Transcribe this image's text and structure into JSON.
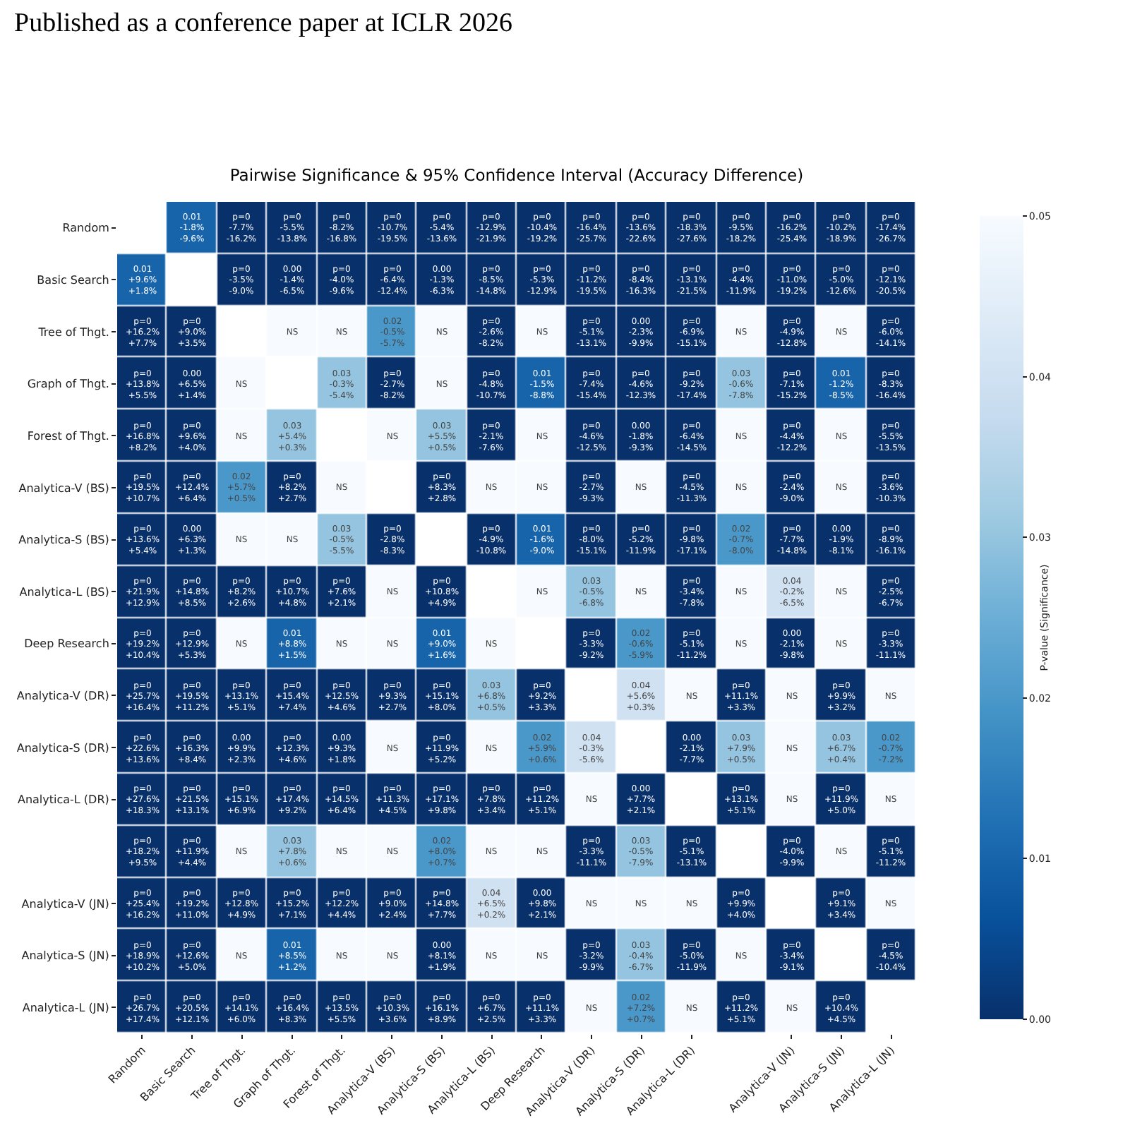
{
  "chart_data": {
    "type": "heatmap",
    "title": "Pairwise Significance & 95% Confidence Interval (Accuracy Difference)",
    "clabel": "P-value (Significance)",
    "annotations": [
      "Published as a conference paper at ICLR 2026"
    ],
    "categories": [
      "Random",
      "Basic Search",
      "Tree of Thgt.",
      "Graph of Thgt.",
      "Forest of Thgt.",
      "Analytica-V (BS)",
      "Analytica-S (BS)",
      "Analytica-L (BS)",
      "Deep Research",
      "Analytica-V (DR)",
      "Analytica-S (DR)",
      "Analytica-L (DR)",
      null,
      "Analytica-V (JN)",
      "Analytica-S (JN)",
      "Analytica-L (JN)"
    ],
    "y_categories": [
      "Random",
      "Basic Search",
      "Tree of Thgt.",
      "Graph of Thgt.",
      "Forest of Thgt.",
      "Analytica-V (BS)",
      "Analytica-S (BS)",
      "Analytica-L (BS)",
      "Deep Research",
      "Analytica-V (DR)",
      "Analytica-S (DR)",
      "Analytica-L (DR)",
      null,
      "Analytica-V (JN)",
      "Analytica-S (JN)",
      "Analytica-L (JN)"
    ],
    "clim": [
      0,
      0.05
    ],
    "cticks": [
      {
        "value": 0,
        "label": "0.00"
      },
      0.01,
      0.02,
      0.03,
      0.04,
      0.05
    ],
    "cells": [
      [
        null,
        0.01,
        0,
        0,
        0,
        0,
        0,
        0,
        0,
        0,
        0,
        0,
        0,
        0,
        0,
        0
      ],
      [
        0.01,
        null,
        0,
        0,
        0,
        0,
        0,
        0,
        0,
        0,
        0,
        0,
        0,
        0,
        0,
        0
      ],
      [
        0,
        0,
        null,
        0.05,
        0.05,
        0.02,
        0.05,
        0,
        0.05,
        0,
        0,
        0,
        0.05,
        0,
        0.05,
        0
      ],
      [
        0,
        0,
        0.05,
        null,
        0.03,
        0,
        0.05,
        0,
        0.01,
        0,
        0,
        0,
        0.03,
        0,
        0.01,
        0
      ],
      [
        0,
        0,
        0.05,
        0.03,
        null,
        0.05,
        0.03,
        0,
        0.05,
        0,
        0,
        0,
        0.05,
        0,
        0.05,
        0
      ],
      [
        0,
        0,
        0.02,
        0,
        0.05,
        null,
        0,
        0.05,
        0.05,
        0,
        0.05,
        0,
        0.05,
        0,
        0.05,
        0
      ],
      [
        0,
        0,
        0.05,
        0.05,
        0.03,
        0,
        null,
        0,
        0.01,
        0,
        0,
        0,
        0.02,
        0,
        0,
        0
      ],
      [
        0,
        0,
        0,
        0,
        0,
        0.05,
        0,
        null,
        0.05,
        0.03,
        0.05,
        0,
        0.05,
        0.04,
        0.05,
        0
      ],
      [
        0,
        0,
        0.05,
        0.01,
        0.05,
        0.05,
        0.01,
        0.05,
        null,
        0,
        0.02,
        0,
        0.05,
        0,
        0.05,
        0
      ],
      [
        0,
        0,
        0,
        0,
        0,
        0,
        0,
        0.03,
        0,
        null,
        0.04,
        0.05,
        0,
        0.05,
        0,
        0.05
      ],
      [
        0,
        0,
        0,
        0,
        0,
        0.05,
        0,
        0.05,
        0.02,
        0.04,
        null,
        0,
        0.03,
        0.05,
        0.03,
        0.02
      ],
      [
        0,
        0,
        0,
        0,
        0,
        0,
        0,
        0,
        0,
        0.05,
        0,
        null,
        0,
        0.05,
        0,
        0.05
      ],
      [
        0,
        0,
        0.05,
        0.03,
        0.05,
        0.05,
        0.02,
        0.05,
        0.05,
        0,
        0.03,
        0,
        null,
        0,
        0.05,
        0
      ],
      [
        0,
        0,
        0,
        0,
        0,
        0,
        0,
        0.04,
        0,
        0.05,
        0.05,
        0.05,
        0,
        null,
        0,
        0.05
      ],
      [
        0,
        0,
        0.05,
        0.01,
        0.05,
        0.05,
        0,
        0.05,
        0.05,
        0,
        0.03,
        0,
        0.05,
        0,
        null,
        0
      ],
      [
        0,
        0,
        0,
        0,
        0,
        0,
        0,
        0,
        0,
        0.05,
        0.02,
        0.05,
        0,
        0.05,
        0,
        null
      ]
    ],
    "cell_labels": [
      [
        null,
        "0.01\n-1.8%\n-9.6%",
        "p=0\n-7.7%\n-16.2%",
        "p=0\n-5.5%\n-13.8%",
        "p=0\n-8.2%\n-16.8%",
        "p=0\n-10.7%\n-19.5%",
        "p=0\n-5.4%\n-13.6%",
        "p=0\n-12.9%\n-21.9%",
        "p=0\n-10.4%\n-19.2%",
        "p=0\n-16.4%\n-25.7%",
        "p=0\n-13.6%\n-22.6%",
        "p=0\n-18.3%\n-27.6%",
        "p=0\n-9.5%\n-18.2%",
        "p=0\n-16.2%\n-25.4%",
        "p=0\n-10.2%\n-18.9%",
        "p=0\n-17.4%\n-26.7%"
      ],
      [
        "0.01\n+9.6%\n+1.8%",
        null,
        "p=0\n-3.5%\n-9.0%",
        "0.00\n-1.4%\n-6.5%",
        "p=0\n-4.0%\n-9.6%",
        "p=0\n-6.4%\n-12.4%",
        "0.00\n-1.3%\n-6.3%",
        "p=0\n-8.5%\n-14.8%",
        "p=0\n-5.3%\n-12.9%",
        "p=0\n-11.2%\n-19.5%",
        "p=0\n-8.4%\n-16.3%",
        "p=0\n-13.1%\n-21.5%",
        "p=0\n-4.4%\n-11.9%",
        "p=0\n-11.0%\n-19.2%",
        "p=0\n-5.0%\n-12.6%",
        "p=0\n-12.1%\n-20.5%"
      ],
      [
        "p=0\n+16.2%\n+7.7%",
        "p=0\n+9.0%\n+3.5%",
        null,
        "NS",
        "NS",
        "0.02\n-0.5%\n-5.7%",
        "NS",
        "p=0\n-2.6%\n-8.2%",
        "NS",
        "p=0\n-5.1%\n-13.1%",
        "0.00\n-2.3%\n-9.9%",
        "p=0\n-6.9%\n-15.1%",
        "NS",
        "p=0\n-4.9%\n-12.8%",
        "NS",
        "p=0\n-6.0%\n-14.1%"
      ],
      [
        "p=0\n+13.8%\n+5.5%",
        "0.00\n+6.5%\n+1.4%",
        "NS",
        null,
        "0.03\n-0.3%\n-5.4%",
        "p=0\n-2.7%\n-8.2%",
        "NS",
        "p=0\n-4.8%\n-10.7%",
        "0.01\n-1.5%\n-8.8%",
        "p=0\n-7.4%\n-15.4%",
        "p=0\n-4.6%\n-12.3%",
        "p=0\n-9.2%\n-17.4%",
        "0.03\n-0.6%\n-7.8%",
        "p=0\n-7.1%\n-15.2%",
        "0.01\n-1.2%\n-8.5%",
        "p=0\n-8.3%\n-16.4%"
      ],
      [
        "p=0\n+16.8%\n+8.2%",
        "p=0\n+9.6%\n+4.0%",
        "NS",
        "0.03\n+5.4%\n+0.3%",
        null,
        "NS",
        "0.03\n+5.5%\n+0.5%",
        "p=0\n-2.1%\n-7.6%",
        "NS",
        "p=0\n-4.6%\n-12.5%",
        "0.00\n-1.8%\n-9.3%",
        "p=0\n-6.4%\n-14.5%",
        "NS",
        "p=0\n-4.4%\n-12.2%",
        "NS",
        "p=0\n-5.5%\n-13.5%"
      ],
      [
        "p=0\n+19.5%\n+10.7%",
        "p=0\n+12.4%\n+6.4%",
        "0.02\n+5.7%\n+0.5%",
        "p=0\n+8.2%\n+2.7%",
        "NS",
        null,
        "p=0\n+8.3%\n+2.8%",
        "NS",
        "NS",
        "p=0\n-2.7%\n-9.3%",
        "NS",
        "p=0\n-4.5%\n-11.3%",
        "NS",
        "p=0\n-2.4%\n-9.0%",
        "NS",
        "p=0\n-3.6%\n-10.3%"
      ],
      [
        "p=0\n+13.6%\n+5.4%",
        "0.00\n+6.3%\n+1.3%",
        "NS",
        "NS",
        "0.03\n-0.5%\n-5.5%",
        "p=0\n-2.8%\n-8.3%",
        null,
        "p=0\n-4.9%\n-10.8%",
        "0.01\n-1.6%\n-9.0%",
        "p=0\n-8.0%\n-15.1%",
        "p=0\n-5.2%\n-11.9%",
        "p=0\n-9.8%\n-17.1%",
        "0.02\n-0.7%\n-8.0%",
        "p=0\n-7.7%\n-14.8%",
        "0.00\n-1.9%\n-8.1%",
        "p=0\n-8.9%\n-16.1%"
      ],
      [
        "p=0\n+21.9%\n+12.9%",
        "p=0\n+14.8%\n+8.5%",
        "p=0\n+8.2%\n+2.6%",
        "p=0\n+10.7%\n+4.8%",
        "p=0\n+7.6%\n+2.1%",
        "NS",
        "p=0\n+10.8%\n+4.9%",
        null,
        "NS",
        "0.03\n-0.5%\n-6.8%",
        "NS",
        "p=0\n-3.4%\n-7.8%",
        "NS",
        "0.04\n-0.2%\n-6.5%",
        "NS",
        "p=0\n-2.5%\n-6.7%"
      ],
      [
        "p=0\n+19.2%\n+10.4%",
        "p=0\n+12.9%\n+5.3%",
        "NS",
        "0.01\n+8.8%\n+1.5%",
        "NS",
        "NS",
        "0.01\n+9.0%\n+1.6%",
        "NS",
        null,
        "p=0\n-3.3%\n-9.2%",
        "0.02\n-0.6%\n-5.9%",
        "p=0\n-5.1%\n-11.2%",
        "NS",
        "0.00\n-2.1%\n-9.8%",
        "NS",
        "p=0\n-3.3%\n-11.1%"
      ],
      [
        "p=0\n+25.7%\n+16.4%",
        "p=0\n+19.5%\n+11.2%",
        "p=0\n+13.1%\n+5.1%",
        "p=0\n+15.4%\n+7.4%",
        "p=0\n+12.5%\n+4.6%",
        "p=0\n+9.3%\n+2.7%",
        "p=0\n+15.1%\n+8.0%",
        "0.03\n+6.8%\n+0.5%",
        "p=0\n+9.2%\n+3.3%",
        null,
        "0.04\n+5.6%\n+0.3%",
        "NS",
        "p=0\n+11.1%\n+3.3%",
        "NS",
        "p=0\n+9.9%\n+3.2%",
        "NS"
      ],
      [
        "p=0\n+22.6%\n+13.6%",
        "p=0\n+16.3%\n+8.4%",
        "0.00\n+9.9%\n+2.3%",
        "p=0\n+12.3%\n+4.6%",
        "0.00\n+9.3%\n+1.8%",
        "NS",
        "p=0\n+11.9%\n+5.2%",
        "NS",
        "0.02\n+5.9%\n+0.6%",
        "0.04\n-0.3%\n-5.6%",
        null,
        "0.00\n-2.1%\n-7.7%",
        "0.03\n+7.9%\n+0.5%",
        "NS",
        "0.03\n+6.7%\n+0.4%",
        "0.02\n-0.7%\n-7.2%"
      ],
      [
        "p=0\n+27.6%\n+18.3%",
        "p=0\n+21.5%\n+13.1%",
        "p=0\n+15.1%\n+6.9%",
        "p=0\n+17.4%\n+9.2%",
        "p=0\n+14.5%\n+6.4%",
        "p=0\n+11.3%\n+4.5%",
        "p=0\n+17.1%\n+9.8%",
        "p=0\n+7.8%\n+3.4%",
        "p=0\n+11.2%\n+5.1%",
        "NS",
        "0.00\n+7.7%\n+2.1%",
        null,
        "p=0\n+13.1%\n+5.1%",
        "NS",
        "p=0\n+11.9%\n+5.0%",
        "NS"
      ],
      [
        "p=0\n+18.2%\n+9.5%",
        "p=0\n+11.9%\n+4.4%",
        "NS",
        "0.03\n+7.8%\n+0.6%",
        "NS",
        "NS",
        "0.02\n+8.0%\n+0.7%",
        "NS",
        "NS",
        "p=0\n-3.3%\n-11.1%",
        "0.03\n-0.5%\n-7.9%",
        "p=0\n-5.1%\n-13.1%",
        null,
        "p=0\n-4.0%\n-9.9%",
        "NS",
        "p=0\n-5.1%\n-11.2%"
      ],
      [
        "p=0\n+25.4%\n+16.2%",
        "p=0\n+19.2%\n+11.0%",
        "p=0\n+12.8%\n+4.9%",
        "p=0\n+15.2%\n+7.1%",
        "p=0\n+12.2%\n+4.4%",
        "p=0\n+9.0%\n+2.4%",
        "p=0\n+14.8%\n+7.7%",
        "0.04\n+6.5%\n+0.2%",
        "0.00\n+9.8%\n+2.1%",
        "NS",
        "NS",
        "NS",
        "p=0\n+9.9%\n+4.0%",
        null,
        "p=0\n+9.1%\n+3.4%",
        "NS"
      ],
      [
        "p=0\n+18.9%\n+10.2%",
        "p=0\n+12.6%\n+5.0%",
        "NS",
        "0.01\n+8.5%\n+1.2%",
        "NS",
        "NS",
        "0.00\n+8.1%\n+1.9%",
        "NS",
        "NS",
        "p=0\n-3.2%\n-9.9%",
        "0.03\n-0.4%\n-6.7%",
        "p=0\n-5.0%\n-11.9%",
        "NS",
        "p=0\n-3.4%\n-9.1%",
        null,
        "p=0\n-4.5%\n-10.4%"
      ],
      [
        "p=0\n+26.7%\n+17.4%",
        "p=0\n+20.5%\n+12.1%",
        "p=0\n+14.1%\n+6.0%",
        "p=0\n+16.4%\n+8.3%",
        "p=0\n+13.5%\n+5.5%",
        "p=0\n+10.3%\n+3.6%",
        "p=0\n+16.1%\n+8.9%",
        "p=0\n+6.7%\n+2.5%",
        "p=0\n+11.1%\n+3.3%",
        "NS",
        "0.02\n+7.2%\n+0.7%",
        "NS",
        "p=0\n+11.2%\n+5.1%",
        "NS",
        "p=0\n+10.4%\n+4.5%",
        null
      ]
    ]
  }
}
